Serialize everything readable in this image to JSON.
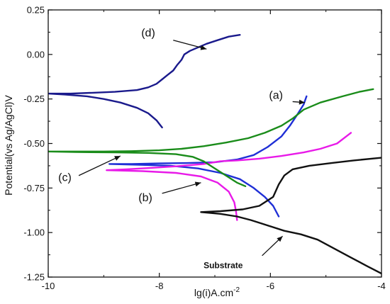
{
  "chart_data": {
    "type": "line",
    "xlabel": "lg(i)A.cm",
    "xlabel_exponent": "-2",
    "ylabel": "Potential(vs Ag/AgCl)V",
    "xlim": [
      -10,
      -4
    ],
    "ylim": [
      -1.25,
      0.25
    ],
    "x_ticks": [
      -10,
      -8,
      -6,
      -4
    ],
    "y_ticks": [
      0.25,
      0.0,
      -0.25,
      -0.5,
      -0.75,
      -1.0,
      -1.25
    ],
    "x_tick_labels": [
      "-10",
      "-8",
      "-6",
      "-4"
    ],
    "y_tick_labels": [
      "0.25",
      "0.00",
      "-0.25",
      "-0.50",
      "-0.75",
      "-1.00",
      "-1.25"
    ],
    "grid": false,
    "series": [
      {
        "name": "(d)",
        "color": "#1a1a8c",
        "points": [
          [
            -7.95,
            -0.41
          ],
          [
            -8.05,
            -0.37
          ],
          [
            -8.2,
            -0.33
          ],
          [
            -8.4,
            -0.3
          ],
          [
            -8.7,
            -0.27
          ],
          [
            -9.0,
            -0.25
          ],
          [
            -9.3,
            -0.235
          ],
          [
            -9.7,
            -0.225
          ],
          [
            -10.0,
            -0.22
          ],
          [
            -9.6,
            -0.22
          ],
          [
            -9.2,
            -0.215
          ],
          [
            -8.8,
            -0.21
          ],
          [
            -8.4,
            -0.2
          ],
          [
            -8.2,
            -0.185
          ],
          [
            -8.05,
            -0.165
          ],
          [
            -7.95,
            -0.14
          ],
          [
            -7.85,
            -0.115
          ],
          [
            -7.75,
            -0.09
          ],
          [
            -7.68,
            -0.06
          ],
          [
            -7.6,
            -0.03
          ],
          [
            -7.55,
            0.0
          ],
          [
            -7.45,
            0.02
          ],
          [
            -7.3,
            0.04
          ],
          [
            -7.15,
            0.06
          ],
          [
            -6.95,
            0.08
          ],
          [
            -6.75,
            0.1
          ],
          [
            -6.55,
            0.11
          ]
        ]
      },
      {
        "name": "(a)",
        "color": "#1f2fd6",
        "points": [
          [
            -5.85,
            -0.91
          ],
          [
            -5.95,
            -0.85
          ],
          [
            -6.1,
            -0.8
          ],
          [
            -6.3,
            -0.75
          ],
          [
            -6.55,
            -0.7
          ],
          [
            -6.9,
            -0.665
          ],
          [
            -7.3,
            -0.64
          ],
          [
            -7.8,
            -0.625
          ],
          [
            -8.3,
            -0.62
          ],
          [
            -8.9,
            -0.615
          ],
          [
            -8.5,
            -0.615
          ],
          [
            -8.0,
            -0.612
          ],
          [
            -7.5,
            -0.61
          ],
          [
            -7.0,
            -0.605
          ],
          [
            -6.6,
            -0.59
          ],
          [
            -6.3,
            -0.565
          ],
          [
            -6.05,
            -0.52
          ],
          [
            -5.8,
            -0.46
          ],
          [
            -5.65,
            -0.4
          ],
          [
            -5.5,
            -0.33
          ],
          [
            -5.4,
            -0.28
          ],
          [
            -5.35,
            -0.235
          ]
        ]
      },
      {
        "name": "(b)",
        "color": "#e81ae8",
        "points": [
          [
            -6.6,
            -0.93
          ],
          [
            -6.62,
            -0.88
          ],
          [
            -6.65,
            -0.83
          ],
          [
            -6.75,
            -0.77
          ],
          [
            -6.95,
            -0.72
          ],
          [
            -7.25,
            -0.685
          ],
          [
            -7.7,
            -0.665
          ],
          [
            -8.3,
            -0.655
          ],
          [
            -8.95,
            -0.65
          ],
          [
            -8.6,
            -0.645
          ],
          [
            -8.2,
            -0.638
          ],
          [
            -7.7,
            -0.628
          ],
          [
            -7.2,
            -0.615
          ],
          [
            -6.9,
            -0.6
          ],
          [
            -6.6,
            -0.595
          ],
          [
            -6.2,
            -0.585
          ],
          [
            -5.8,
            -0.57
          ],
          [
            -5.4,
            -0.55
          ],
          [
            -5.1,
            -0.53
          ],
          [
            -4.8,
            -0.5
          ],
          [
            -4.55,
            -0.44
          ]
        ]
      },
      {
        "name": "(c)",
        "color": "#1a8c1a",
        "points": [
          [
            -6.45,
            -0.74
          ],
          [
            -6.6,
            -0.72
          ],
          [
            -6.75,
            -0.69
          ],
          [
            -6.9,
            -0.66
          ],
          [
            -7.05,
            -0.63
          ],
          [
            -7.2,
            -0.6
          ],
          [
            -7.4,
            -0.575
          ],
          [
            -7.7,
            -0.56
          ],
          [
            -8.2,
            -0.553
          ],
          [
            -8.8,
            -0.55
          ],
          [
            -9.5,
            -0.548
          ],
          [
            -10.0,
            -0.545
          ],
          [
            -9.5,
            -0.545
          ],
          [
            -9.0,
            -0.545
          ],
          [
            -8.5,
            -0.543
          ],
          [
            -8.0,
            -0.538
          ],
          [
            -7.6,
            -0.53
          ],
          [
            -7.2,
            -0.515
          ],
          [
            -6.8,
            -0.495
          ],
          [
            -6.4,
            -0.47
          ],
          [
            -6.1,
            -0.44
          ],
          [
            -5.8,
            -0.4
          ],
          [
            -5.6,
            -0.36
          ],
          [
            -5.4,
            -0.31
          ],
          [
            -5.1,
            -0.27
          ],
          [
            -4.7,
            -0.235
          ],
          [
            -4.4,
            -0.21
          ],
          [
            -4.15,
            -0.195
          ]
        ]
      },
      {
        "name": "Substrate",
        "color": "#111111",
        "points": [
          [
            -4.0,
            -1.23
          ],
          [
            -4.25,
            -1.19
          ],
          [
            -4.55,
            -1.14
          ],
          [
            -4.85,
            -1.09
          ],
          [
            -5.15,
            -1.04
          ],
          [
            -5.45,
            -1.01
          ],
          [
            -5.75,
            -0.99
          ],
          [
            -5.95,
            -0.97
          ],
          [
            -6.15,
            -0.95
          ],
          [
            -6.35,
            -0.93
          ],
          [
            -6.6,
            -0.91
          ],
          [
            -6.9,
            -0.895
          ],
          [
            -7.25,
            -0.885
          ],
          [
            -6.9,
            -0.88
          ],
          [
            -6.5,
            -0.87
          ],
          [
            -6.2,
            -0.85
          ],
          [
            -5.95,
            -0.8
          ],
          [
            -5.85,
            -0.73
          ],
          [
            -5.75,
            -0.68
          ],
          [
            -5.6,
            -0.645
          ],
          [
            -5.3,
            -0.625
          ],
          [
            -4.9,
            -0.61
          ],
          [
            -4.5,
            -0.595
          ],
          [
            -4.0,
            -0.58
          ]
        ]
      }
    ],
    "annotations": [
      {
        "text": "(d)",
        "style": "normal",
        "label": [
          -8.2,
          0.1
        ],
        "arrow_from": [
          -7.75,
          0.08
        ],
        "arrow_to": [
          -7.15,
          0.03
        ]
      },
      {
        "text": "(a)",
        "style": "normal",
        "label": [
          -5.9,
          -0.25
        ],
        "arrow_from": [
          -5.6,
          -0.265
        ],
        "arrow_to": [
          -5.38,
          -0.27
        ]
      },
      {
        "text": "(c)",
        "style": "normal",
        "label": [
          -9.7,
          -0.71
        ],
        "arrow_from": [
          -9.45,
          -0.68
        ],
        "arrow_to": [
          -8.7,
          -0.57
        ]
      },
      {
        "text": "(b)",
        "style": "normal",
        "label": [
          -8.25,
          -0.825
        ],
        "arrow_from": [
          -7.95,
          -0.78
        ],
        "arrow_to": [
          -7.25,
          -0.72
        ]
      },
      {
        "text": "Substrate",
        "style": "bold",
        "label": [
          -6.85,
          -1.2
        ],
        "arrow_from": [
          -6.15,
          -1.13
        ],
        "arrow_to": [
          -5.78,
          -1.02
        ]
      }
    ]
  }
}
